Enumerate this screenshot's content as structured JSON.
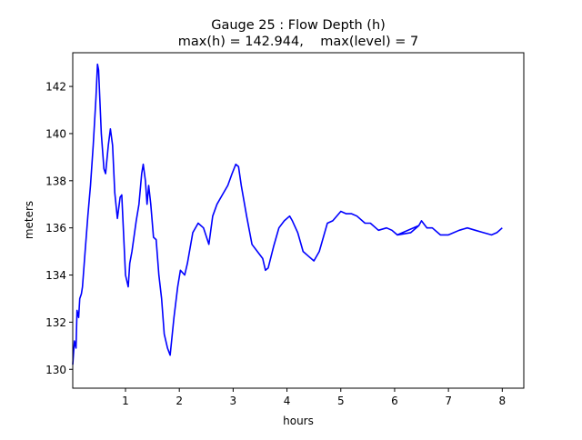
{
  "chart_data": {
    "type": "line",
    "title": "Gauge 25 : Flow Depth (h)",
    "subtitle": "max(h) = 142.944,    max(level) = 7",
    "xlabel": "hours",
    "ylabel": "meters",
    "xlim": [
      0.02,
      8.4
    ],
    "ylim": [
      129.2,
      143.43
    ],
    "xticks": [
      "1",
      "2",
      "3",
      "4",
      "5",
      "6",
      "7",
      "8"
    ],
    "yticks": [
      "130",
      "132",
      "134",
      "136",
      "138",
      "140",
      "142"
    ],
    "grid": false,
    "line_color": "#0000ff",
    "series": [
      {
        "name": "h",
        "x": [
          0.02,
          0.05,
          0.08,
          0.1,
          0.13,
          0.15,
          0.18,
          0.2,
          0.25,
          0.3,
          0.35,
          0.4,
          0.45,
          0.48,
          0.5,
          0.55,
          0.6,
          0.63,
          0.68,
          0.72,
          0.76,
          0.8,
          0.85,
          0.9,
          0.93,
          0.97,
          1.0,
          1.05,
          1.08,
          1.12,
          1.2,
          1.25,
          1.3,
          1.33,
          1.37,
          1.4,
          1.43,
          1.47,
          1.52,
          1.57,
          1.62,
          1.67,
          1.72,
          1.78,
          1.83,
          1.9,
          1.97,
          2.02,
          2.1,
          2.15,
          2.25,
          2.35,
          2.45,
          2.55,
          2.62,
          2.7,
          2.8,
          2.9,
          2.98,
          3.05,
          3.1,
          3.15,
          3.25,
          3.35,
          3.45,
          3.55,
          3.6,
          3.65,
          3.75,
          3.85,
          3.95,
          4.05,
          4.1,
          4.2,
          4.3,
          4.4,
          4.5,
          4.6,
          4.75,
          4.85,
          5.0,
          5.1,
          5.2,
          5.3,
          5.45,
          5.55,
          5.7,
          5.85,
          5.95,
          6.05,
          6.45,
          6.05,
          6.3,
          6.45,
          6.5,
          6.6,
          6.7,
          6.85,
          7.0,
          7.2,
          7.35,
          7.5,
          7.65,
          7.8,
          7.9,
          8.0
        ],
        "y": [
          130.2,
          131.2,
          130.9,
          132.5,
          132.2,
          133.0,
          133.2,
          133.5,
          135.0,
          136.5,
          137.8,
          139.5,
          141.5,
          142.94,
          142.7,
          140.0,
          138.5,
          138.3,
          139.5,
          140.2,
          139.5,
          137.5,
          136.4,
          137.3,
          137.4,
          135.5,
          134.0,
          133.5,
          134.5,
          135.0,
          136.3,
          137.0,
          138.3,
          138.7,
          138.0,
          137.0,
          137.8,
          137.0,
          135.6,
          135.5,
          134.0,
          133.0,
          131.5,
          130.9,
          130.6,
          132.2,
          133.5,
          134.2,
          134.0,
          134.5,
          135.8,
          136.2,
          136.0,
          135.3,
          136.5,
          137.0,
          137.4,
          137.8,
          138.3,
          138.7,
          138.6,
          137.8,
          136.5,
          135.3,
          135.0,
          134.7,
          134.2,
          134.3,
          135.2,
          136.0,
          136.3,
          136.5,
          136.3,
          135.8,
          135.0,
          134.8,
          134.6,
          135.0,
          136.2,
          136.3,
          136.7,
          136.6,
          136.6,
          136.5,
          136.2,
          136.2,
          135.9,
          136.0,
          135.9,
          135.7,
          136.1,
          135.7,
          135.8,
          136.1,
          136.3,
          136.0,
          136.0,
          135.7,
          135.7,
          135.9,
          136.0,
          135.9,
          135.8,
          135.7,
          135.8,
          136.0
        ]
      }
    ]
  }
}
